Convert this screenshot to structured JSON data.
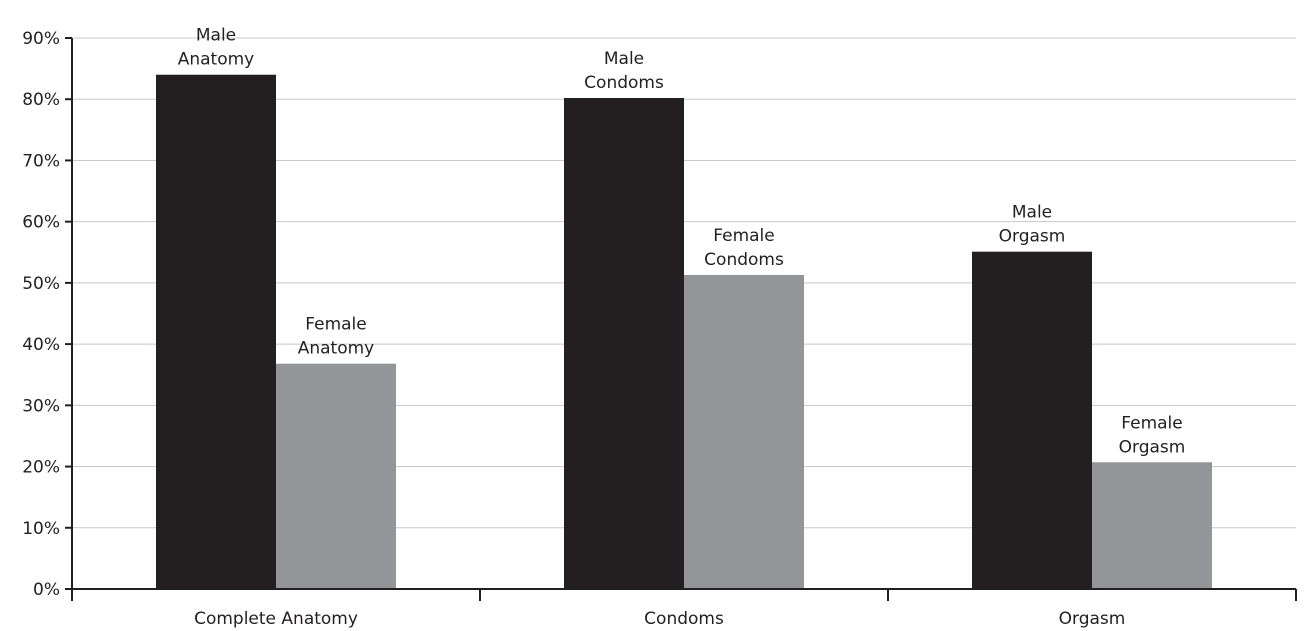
{
  "chart_data": {
    "type": "bar",
    "categories": [
      "Complete Anatomy",
      "Condoms",
      "Orgasm"
    ],
    "ylim": [
      0,
      90
    ],
    "yticks": [
      "0%",
      "10%",
      "20%",
      "30%",
      "40%",
      "50%",
      "60%",
      "70%",
      "80%",
      "90%"
    ],
    "grid": true,
    "series": [
      {
        "color": "#231f20",
        "values": [
          84,
          80.2,
          55.1
        ],
        "labels": [
          [
            "Male",
            "Anatomy"
          ],
          [
            "Male",
            "Condoms"
          ],
          [
            "Male",
            "Orgasm"
          ]
        ]
      },
      {
        "color": "#939598",
        "values": [
          36.8,
          51.3,
          20.7
        ],
        "labels": [
          [
            "Female",
            "Anatomy"
          ],
          [
            "Female",
            "Condoms"
          ],
          [
            "Female",
            "Orgasm"
          ]
        ]
      }
    ]
  }
}
